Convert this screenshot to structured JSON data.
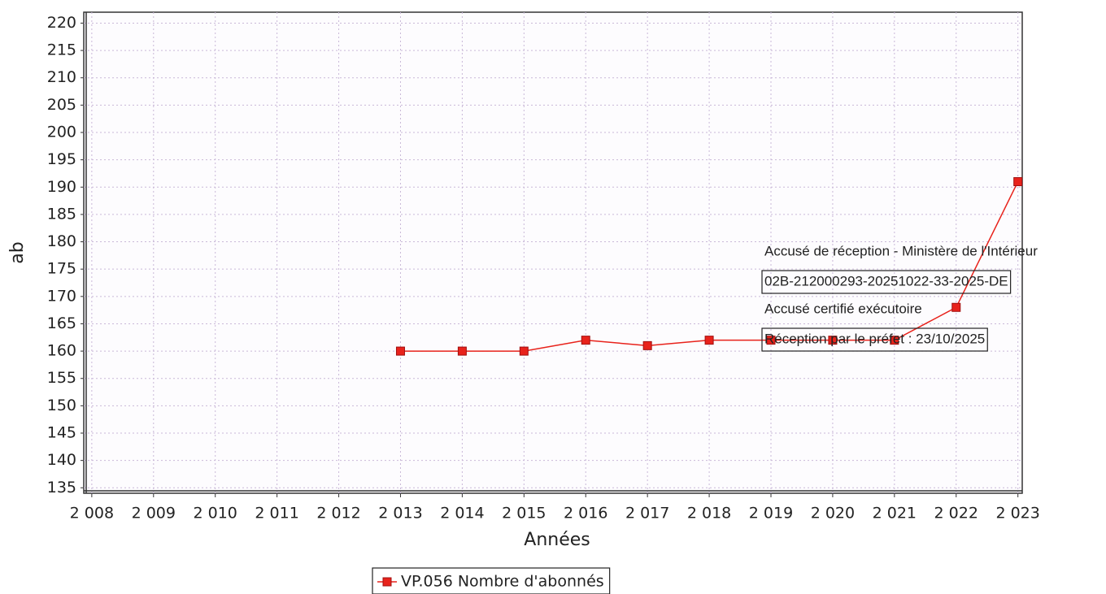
{
  "chart_data": {
    "type": "line",
    "x_label": "Années",
    "y_label": "ab",
    "x": [
      2008,
      2009,
      2010,
      2011,
      2012,
      2013,
      2014,
      2015,
      2016,
      2017,
      2018,
      2019,
      2020,
      2021,
      2022,
      2023
    ],
    "series": [
      {
        "name": "VP.056 Nombre d'abonnés",
        "color": "#e8221b",
        "values": [
          null,
          null,
          null,
          null,
          null,
          160,
          160,
          160,
          162,
          161,
          162,
          162,
          162,
          162,
          168,
          191
        ]
      }
    ],
    "xlim": [
      2007.87,
      2023.07
    ],
    "xticks": [
      {
        "value": 2008,
        "label": "2 008"
      },
      {
        "value": 2009,
        "label": "2 009"
      },
      {
        "value": 2010,
        "label": "2 010"
      },
      {
        "value": 2011,
        "label": "2 011"
      },
      {
        "value": 2012,
        "label": "2 012"
      },
      {
        "value": 2013,
        "label": "2 013"
      },
      {
        "value": 2014,
        "label": "2 014"
      },
      {
        "value": 2015,
        "label": "2 015"
      },
      {
        "value": 2016,
        "label": "2 016"
      },
      {
        "value": 2017,
        "label": "2 017"
      },
      {
        "value": 2018,
        "label": "2 018"
      },
      {
        "value": 2019,
        "label": "2 019"
      },
      {
        "value": 2020,
        "label": "2 020"
      },
      {
        "value": 2021,
        "label": "2 021"
      },
      {
        "value": 2022,
        "label": "2 022"
      },
      {
        "value": 2023,
        "label": "2 023"
      }
    ],
    "ylim": [
      134,
      222
    ],
    "yticks": [
      135,
      140,
      145,
      150,
      155,
      160,
      165,
      170,
      175,
      180,
      185,
      190,
      195,
      200,
      205,
      210,
      215,
      220
    ],
    "grid": true,
    "legend": "bottom",
    "annotations": [
      {
        "text": "Accusé de réception - Ministère de l'Intérieur",
        "boxed": false
      },
      {
        "text": "02B-212000293-20251022-33-2025-DE",
        "boxed": true
      },
      {
        "text": "Accusé certifié exécutoire",
        "boxed": false
      },
      {
        "text": "Réception par le préfet : 23/10/2025",
        "boxed": true
      }
    ]
  }
}
